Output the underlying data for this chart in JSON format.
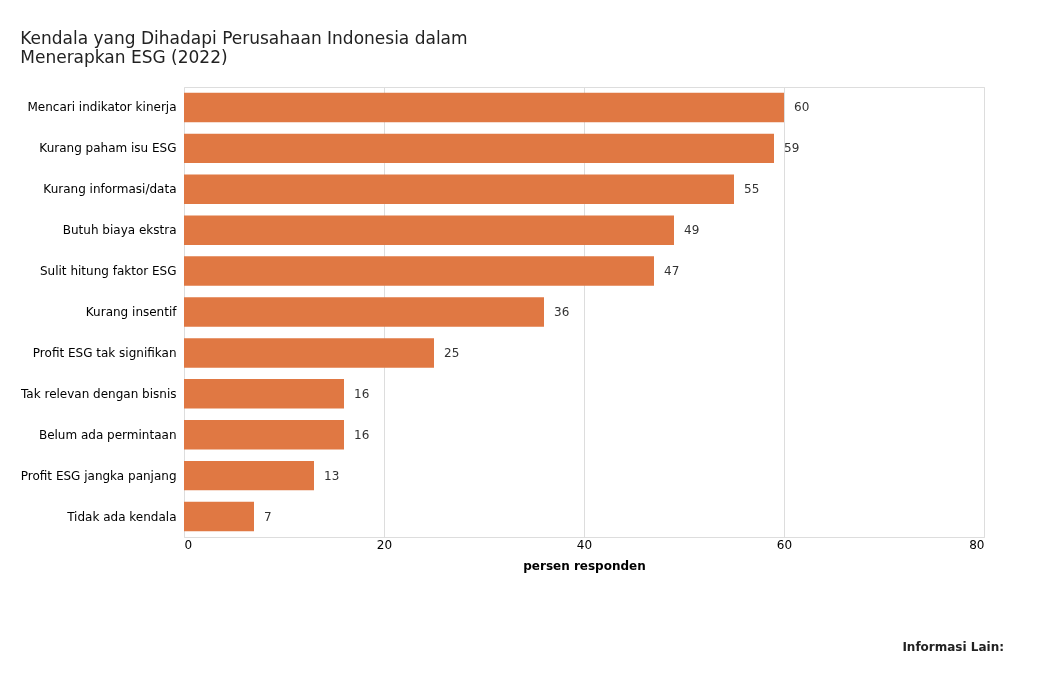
{
  "chart_data": {
    "type": "bar",
    "orientation": "horizontal",
    "title": [
      "Kendala yang Dihadapi Perusahaan Indonesia dalam",
      "Menerapkan ESG (2022)"
    ],
    "categories": [
      "Mencari indikator kinerja",
      "Kurang paham isu ESG",
      "Kurang informasi/data",
      "Butuh biaya ekstra",
      "Sulit hitung faktor ESG",
      "Kurang insentif",
      "Profit ESG tak signifikan",
      "Tak relevan dengan bisnis",
      "Belum ada permintaan",
      "Profit ESG jangka panjang",
      "Tidak ada kendala"
    ],
    "values": [
      60,
      59,
      55,
      49,
      47,
      36,
      25,
      16,
      16,
      13,
      7
    ],
    "color": "#e07843",
    "xlabel": "persen responden",
    "xlim": [
      0,
      80
    ],
    "xticks": [
      0,
      20,
      40,
      60,
      80
    ],
    "grid": "x",
    "data_labels": true,
    "annotations": [
      "Informasi Lain:"
    ]
  }
}
